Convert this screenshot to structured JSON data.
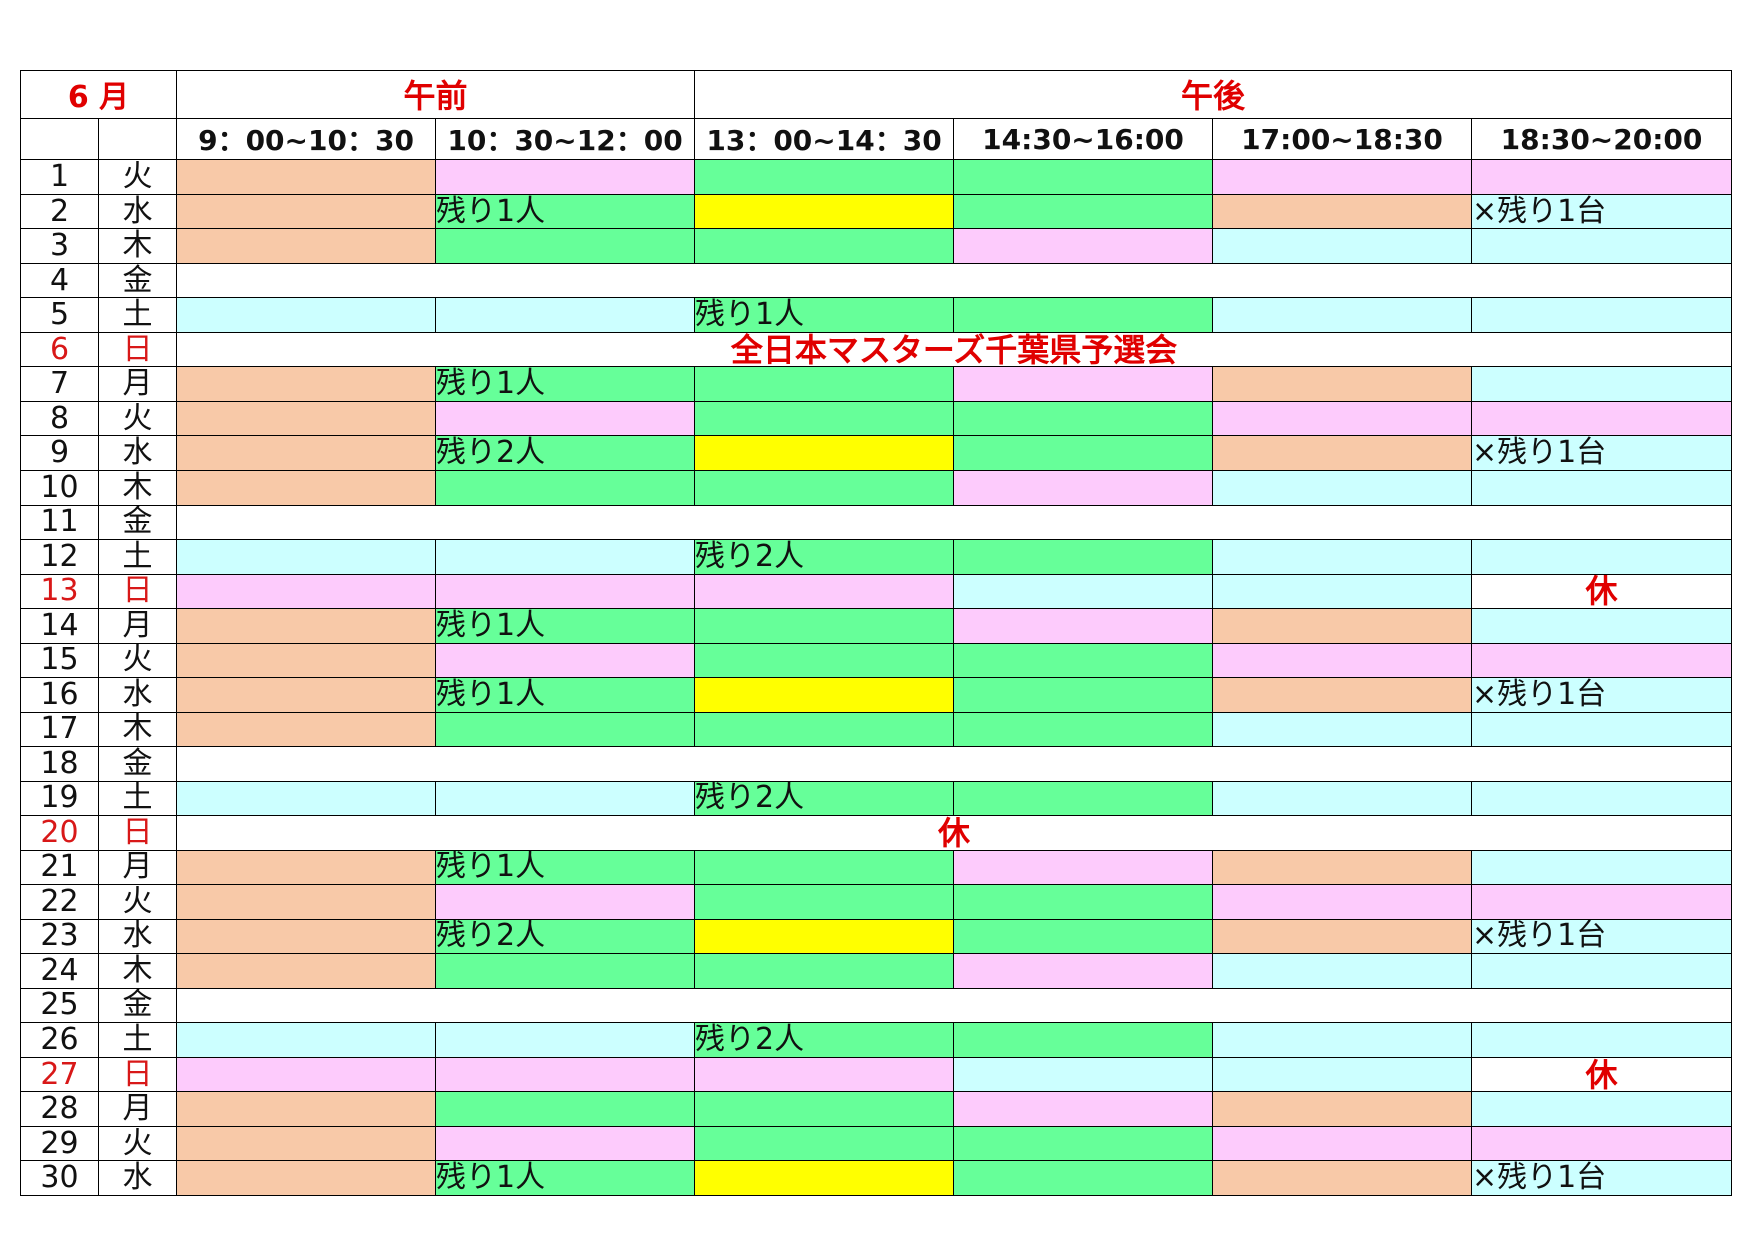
{
  "header": {
    "month": "6 月",
    "am": "午前",
    "pm": "午後",
    "slots": [
      "9：00~10：30",
      "10：30~12：00",
      "13：00~14：30",
      "14:30~16:00",
      "17:00~18:30",
      "18:30~20:00"
    ]
  },
  "legend_colors": {
    "o": "#f8c9a8",
    "p": "#fdcbfc",
    "g": "#66ff99",
    "c": "#ccffff",
    "y": "#ffff00",
    "w": "#ffffff"
  },
  "rows": [
    {
      "d": "1",
      "w": "火",
      "cells": [
        {
          "c": "o"
        },
        {
          "c": "p"
        },
        {
          "c": "g"
        },
        {
          "c": "g"
        },
        {
          "c": "p"
        },
        {
          "c": "p"
        }
      ]
    },
    {
      "d": "2",
      "w": "水",
      "cells": [
        {
          "c": "o"
        },
        {
          "c": "g",
          "t": "残り1人"
        },
        {
          "c": "y"
        },
        {
          "c": "g"
        },
        {
          "c": "o"
        },
        {
          "c": "c",
          "t": "×残り1台"
        }
      ]
    },
    {
      "d": "3",
      "w": "木",
      "cells": [
        {
          "c": "o"
        },
        {
          "c": "g"
        },
        {
          "c": "g"
        },
        {
          "c": "p"
        },
        {
          "c": "c"
        },
        {
          "c": "c"
        }
      ]
    },
    {
      "d": "4",
      "w": "金",
      "full": ""
    },
    {
      "d": "5",
      "w": "土",
      "cells": [
        {
          "c": "c"
        },
        {
          "c": "c"
        },
        {
          "c": "g",
          "t": "残り1人"
        },
        {
          "c": "g"
        },
        {
          "c": "c"
        },
        {
          "c": "c"
        }
      ]
    },
    {
      "d": "6",
      "w": "日",
      "red": true,
      "full": "全日本マスターズ千葉県予選会"
    },
    {
      "d": "7",
      "w": "月",
      "cells": [
        {
          "c": "o"
        },
        {
          "c": "g",
          "t": "残り1人"
        },
        {
          "c": "g"
        },
        {
          "c": "p"
        },
        {
          "c": "o"
        },
        {
          "c": "c"
        }
      ]
    },
    {
      "d": "8",
      "w": "火",
      "cells": [
        {
          "c": "o"
        },
        {
          "c": "p"
        },
        {
          "c": "g"
        },
        {
          "c": "g"
        },
        {
          "c": "p"
        },
        {
          "c": "p"
        }
      ]
    },
    {
      "d": "9",
      "w": "水",
      "cells": [
        {
          "c": "o"
        },
        {
          "c": "g",
          "t": "残り2人"
        },
        {
          "c": "y"
        },
        {
          "c": "g"
        },
        {
          "c": "o"
        },
        {
          "c": "c",
          "t": "×残り1台"
        }
      ]
    },
    {
      "d": "10",
      "w": "木",
      "cells": [
        {
          "c": "o"
        },
        {
          "c": "g"
        },
        {
          "c": "g"
        },
        {
          "c": "p"
        },
        {
          "c": "c"
        },
        {
          "c": "c"
        }
      ]
    },
    {
      "d": "11",
      "w": "金",
      "full": ""
    },
    {
      "d": "12",
      "w": "土",
      "cells": [
        {
          "c": "c"
        },
        {
          "c": "c"
        },
        {
          "c": "g",
          "t": "残り2人"
        },
        {
          "c": "g"
        },
        {
          "c": "c"
        },
        {
          "c": "c"
        }
      ]
    },
    {
      "d": "13",
      "w": "日",
      "red": true,
      "cells": [
        {
          "c": "p"
        },
        {
          "c": "p"
        },
        {
          "c": "p"
        },
        {
          "c": "c"
        },
        {
          "c": "c"
        },
        {
          "c": "w",
          "t": "休",
          "r": true
        }
      ]
    },
    {
      "d": "14",
      "w": "月",
      "cells": [
        {
          "c": "o"
        },
        {
          "c": "g",
          "t": "残り1人"
        },
        {
          "c": "g"
        },
        {
          "c": "p"
        },
        {
          "c": "o"
        },
        {
          "c": "c"
        }
      ]
    },
    {
      "d": "15",
      "w": "火",
      "cells": [
        {
          "c": "o"
        },
        {
          "c": "p"
        },
        {
          "c": "g"
        },
        {
          "c": "g"
        },
        {
          "c": "p"
        },
        {
          "c": "p"
        }
      ]
    },
    {
      "d": "16",
      "w": "水",
      "cells": [
        {
          "c": "o"
        },
        {
          "c": "g",
          "t": "残り1人"
        },
        {
          "c": "y"
        },
        {
          "c": "g"
        },
        {
          "c": "o"
        },
        {
          "c": "c",
          "t": "×残り1台"
        }
      ]
    },
    {
      "d": "17",
      "w": "木",
      "cells": [
        {
          "c": "o"
        },
        {
          "c": "g"
        },
        {
          "c": "g"
        },
        {
          "c": "g"
        },
        {
          "c": "c"
        },
        {
          "c": "c"
        }
      ]
    },
    {
      "d": "18",
      "w": "金",
      "full": ""
    },
    {
      "d": "19",
      "w": "土",
      "cells": [
        {
          "c": "c"
        },
        {
          "c": "c"
        },
        {
          "c": "g",
          "t": "残り2人"
        },
        {
          "c": "g"
        },
        {
          "c": "c"
        },
        {
          "c": "c"
        }
      ]
    },
    {
      "d": "20",
      "w": "日",
      "red": true,
      "full": "休"
    },
    {
      "d": "21",
      "w": "月",
      "cells": [
        {
          "c": "o"
        },
        {
          "c": "g",
          "t": "残り1人"
        },
        {
          "c": "g"
        },
        {
          "c": "p"
        },
        {
          "c": "o"
        },
        {
          "c": "c"
        }
      ]
    },
    {
      "d": "22",
      "w": "火",
      "cells": [
        {
          "c": "o"
        },
        {
          "c": "p"
        },
        {
          "c": "g"
        },
        {
          "c": "g"
        },
        {
          "c": "p"
        },
        {
          "c": "p"
        }
      ]
    },
    {
      "d": "23",
      "w": "水",
      "cells": [
        {
          "c": "o"
        },
        {
          "c": "g",
          "t": "残り2人"
        },
        {
          "c": "y"
        },
        {
          "c": "g"
        },
        {
          "c": "o"
        },
        {
          "c": "c",
          "t": "×残り1台"
        }
      ]
    },
    {
      "d": "24",
      "w": "木",
      "cells": [
        {
          "c": "o"
        },
        {
          "c": "g"
        },
        {
          "c": "g"
        },
        {
          "c": "p"
        },
        {
          "c": "c"
        },
        {
          "c": "c"
        }
      ]
    },
    {
      "d": "25",
      "w": "金",
      "full": ""
    },
    {
      "d": "26",
      "w": "土",
      "cells": [
        {
          "c": "c"
        },
        {
          "c": "c"
        },
        {
          "c": "g",
          "t": "残り2人"
        },
        {
          "c": "g"
        },
        {
          "c": "c"
        },
        {
          "c": "c"
        }
      ]
    },
    {
      "d": "27",
      "w": "日",
      "red": true,
      "cells": [
        {
          "c": "p"
        },
        {
          "c": "p"
        },
        {
          "c": "p"
        },
        {
          "c": "c"
        },
        {
          "c": "c"
        },
        {
          "c": "w",
          "t": "休",
          "r": true
        }
      ]
    },
    {
      "d": "28",
      "w": "月",
      "cells": [
        {
          "c": "o"
        },
        {
          "c": "g"
        },
        {
          "c": "g"
        },
        {
          "c": "p"
        },
        {
          "c": "o"
        },
        {
          "c": "c"
        }
      ]
    },
    {
      "d": "29",
      "w": "火",
      "cells": [
        {
          "c": "o"
        },
        {
          "c": "p"
        },
        {
          "c": "g"
        },
        {
          "c": "g"
        },
        {
          "c": "p"
        },
        {
          "c": "p"
        }
      ]
    },
    {
      "d": "30",
      "w": "水",
      "cells": [
        {
          "c": "o"
        },
        {
          "c": "g",
          "t": "残り1人"
        },
        {
          "c": "y"
        },
        {
          "c": "g"
        },
        {
          "c": "o"
        },
        {
          "c": "c",
          "t": "×残り1台"
        }
      ]
    }
  ]
}
